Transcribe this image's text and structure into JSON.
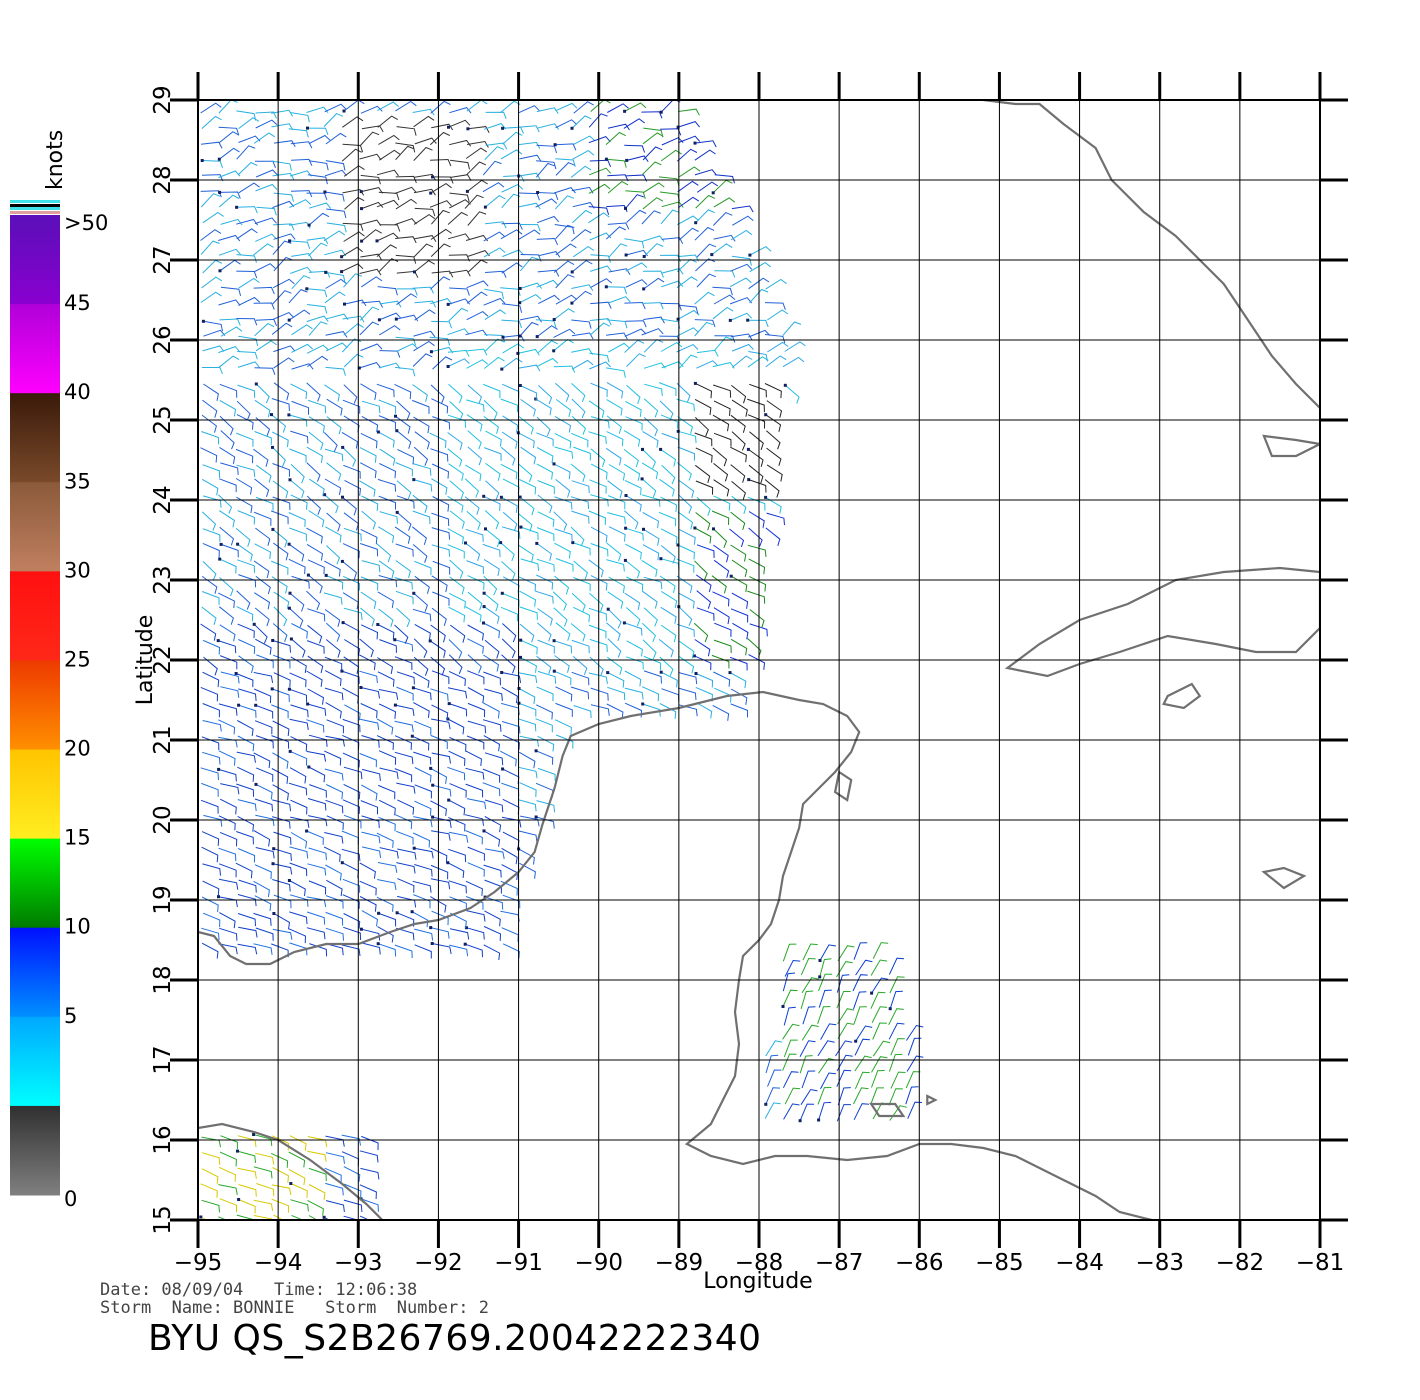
{
  "colorbar": {
    "title": "knots",
    "labels": [
      ">50",
      "45",
      "40",
      "35",
      "30",
      "25",
      "20",
      "15",
      "10",
      "5",
      "0"
    ],
    "segments": [
      {
        "from": "#5a0fb8",
        "to": "#8a00d0"
      },
      {
        "from": "#b000d8",
        "to": "#ff00ff"
      },
      {
        "from": "#3a1a0a",
        "to": "#7a4a2a"
      },
      {
        "from": "#8a5a3a",
        "to": "#c08060"
      },
      {
        "from": "#ff1010",
        "to": "#ff2818"
      },
      {
        "from": "#ee3a00",
        "to": "#ff9000"
      },
      {
        "from": "#ffc400",
        "to": "#ffee20"
      },
      {
        "from": "#00ff00",
        "to": "#007a00"
      },
      {
        "from": "#0010ff",
        "to": "#0090ff"
      },
      {
        "from": "#00a8ff",
        "to": "#00ffff"
      },
      {
        "from": "#303030",
        "to": "#808080"
      }
    ]
  },
  "map": {
    "lon_ticks": [
      "-95",
      "-94",
      "-93",
      "-92",
      "-91",
      "-90",
      "-89",
      "-88",
      "-87",
      "-86",
      "-85",
      "-84",
      "-83",
      "-82",
      "-81"
    ],
    "lat_ticks": [
      "15",
      "16",
      "17",
      "18",
      "19",
      "20",
      "21",
      "22",
      "23",
      "24",
      "25",
      "26",
      "27",
      "28",
      "29"
    ],
    "xlabel": "Longitude",
    "ylabel": "Latitude",
    "lon_range": [
      -95,
      -81
    ],
    "lat_range": [
      15,
      29
    ],
    "grid": true,
    "coastline_color": "#707070"
  },
  "footer": {
    "date_line": "Date: 08/09/04   Time: 12:06:38",
    "storm_line": "Storm  Name: BONNIE   Storm  Number: 2",
    "product_id": "BYU  QS_S2B26769.20042222340"
  }
}
